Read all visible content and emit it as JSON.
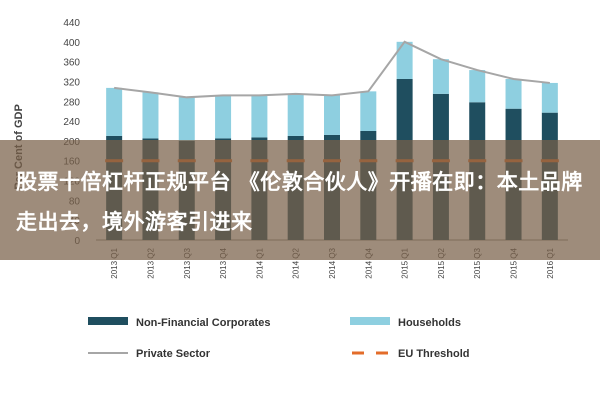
{
  "chart_data": {
    "type": "bar",
    "stacked": true,
    "ylabel": "Per Cent of GDP",
    "ylim": [
      0,
      440
    ],
    "yticks": [
      0,
      40,
      80,
      120,
      160,
      200,
      240,
      280,
      320,
      360,
      400,
      440
    ],
    "categories": [
      "2013 Q1",
      "2013 Q2",
      "2013 Q3",
      "2013 Q4",
      "2014 Q1",
      "2014 Q2",
      "2014 Q3",
      "2014 Q4",
      "2015 Q1",
      "2015 Q2",
      "2015 Q3",
      "2015 Q4",
      "2016 Q1"
    ],
    "series": [
      {
        "name": "Non-Financial Corporates",
        "kind": "bar",
        "color": "#1f4e5f",
        "values": [
          210,
          205,
          200,
          205,
          207,
          210,
          212,
          220,
          325,
          295,
          278,
          265,
          257
        ]
      },
      {
        "name": "Households",
        "kind": "bar",
        "color": "#8ecfe0",
        "values": [
          97,
          93,
          88,
          87,
          85,
          85,
          80,
          80,
          75,
          70,
          65,
          60,
          60
        ]
      },
      {
        "name": "Private Sector",
        "kind": "line",
        "color": "#a6a6a6",
        "values": [
          307,
          298,
          288,
          292,
          292,
          295,
          292,
          300,
          400,
          365,
          343,
          325,
          317
        ]
      },
      {
        "name": "EU Threshold",
        "kind": "dashed-line",
        "color": "#e36c2a",
        "values": [
          160,
          160,
          160,
          160,
          160,
          160,
          160,
          160,
          160,
          160,
          160,
          160,
          160
        ]
      }
    ],
    "legend": "bottom",
    "grid": false
  },
  "caption": "股票十倍杠杆正规平台 《伦敦合伙人》开播在即：本土品牌走出去，境外游客引进来"
}
